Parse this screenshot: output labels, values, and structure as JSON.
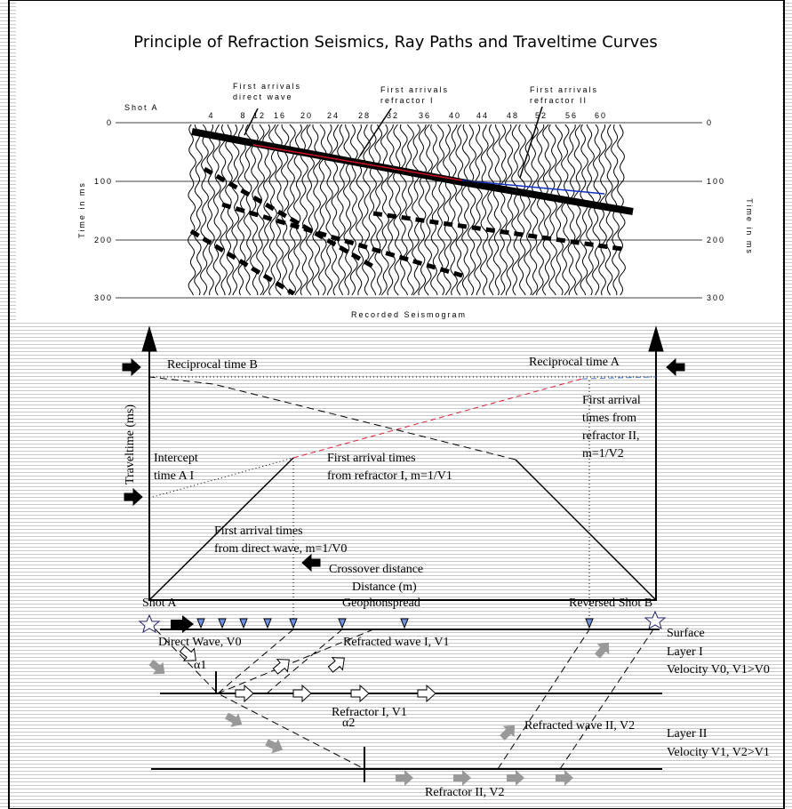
{
  "title": "Principle of  Refraction Seismics, Ray Paths and Traveltime Curves",
  "seismogram": {
    "shot_label": "Shot A",
    "annotations": [
      [
        "First arrivals",
        "direct wave"
      ],
      [
        "First arrivals",
        "refractor I"
      ],
      [
        "First arrivals",
        "refractor II"
      ]
    ],
    "trace_numbers": [
      "4",
      "8",
      "12",
      "16",
      "20",
      "24",
      "28",
      "32",
      "36",
      "40",
      "44",
      "48",
      "52",
      "56",
      "60"
    ],
    "time_ticks_left": [
      "0",
      "100",
      "200",
      "300"
    ],
    "time_ticks_right": [
      "0",
      "100",
      "200",
      "300"
    ],
    "time_axis_label_left": "Time in ms",
    "time_axis_label_right": "Time in ms",
    "caption": "Recorded Seismogram"
  },
  "traveltime": {
    "y_axis_label": "Traveltime (ms)",
    "x_axis_label": "Distance (m)",
    "reciprocal_b": "Reciprocal time B",
    "reciprocal_a": "Reciprocal time A",
    "intercept": [
      "Intercept",
      "time A I"
    ],
    "refractor1": [
      "First arrival times",
      "from refractor I, m=1/V1"
    ],
    "refractor2": [
      "First arrival",
      "times from",
      "refractor II,",
      "m=1/V2"
    ],
    "direct": [
      "First arrival times",
      "from direct wave, m=1/V0"
    ],
    "crossover": "Crossover distance"
  },
  "section": {
    "shot_a": "Shot A",
    "spread": "Geophonspread",
    "shot_b": "Reversed Shot B",
    "surface": "Surface",
    "direct_wave": "Direct Wave, V0",
    "refracted1": "Refracted wave I, V1",
    "layer1": "Layer I",
    "velocity1": "Velocity V0, V1>V0",
    "alpha1": "α1",
    "refractor1": "Refractor I, V1",
    "refracted2": "Refracted wave II, V2",
    "layer2": "Layer II",
    "velocity2": "Velocity V1, V2>V1",
    "alpha2": "α2",
    "refractor2": "Refractor II, V2"
  }
}
